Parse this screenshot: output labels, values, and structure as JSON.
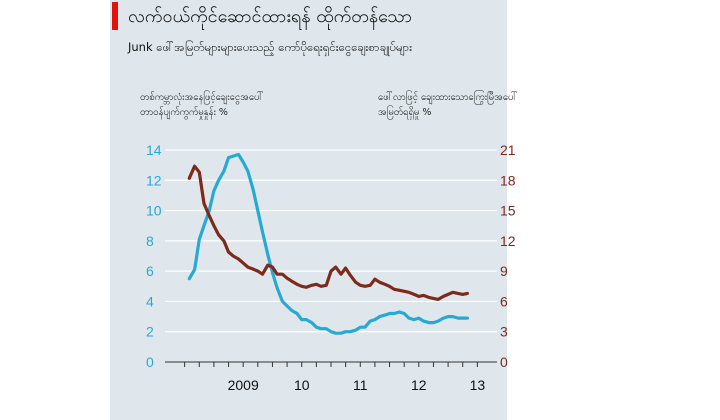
{
  "title": "လက်ဝယ်ကိုင်ဆောင်ထားရန် ထိုက်တန်သော",
  "subtitle": "Junk ဖေါ်အမြတ်များများပေးသည့် ကော်ပိုရေးရှင်းငွေချေးစာချုပ်များ",
  "left_axis_label": [
    "တစ်ကမ္ဘာလုံးအနေဖြင့်ချေးငွေအပေါ်",
    "တာဝန်ပျက်ကွက်မှုနှုန်း %"
  ],
  "right_axis_label": [
    "ဖေါ်လာဖြင့် ချေးထားသောကြွေးမြီအပေါ်",
    "အမြတ်ရရှိမှု %"
  ],
  "colors": {
    "left_series": "#27a9d3",
    "right_series": "#7d2a1b",
    "panel": "#dfe7ec",
    "accent": "#e3120b"
  },
  "chart_data": {
    "type": "line",
    "x_tick_labels": [
      "2009",
      "10",
      "11",
      "12",
      "13"
    ],
    "x_tick_years": [
      2009,
      2010,
      2011,
      2012,
      2013
    ],
    "x_range": [
      2008.25,
      2013.75
    ],
    "y_left": {
      "range": [
        0,
        14
      ],
      "ticks": [
        0,
        2,
        4,
        6,
        8,
        10,
        12,
        14
      ]
    },
    "y_right": {
      "range": [
        0,
        21
      ],
      "ticks": [
        0,
        3,
        6,
        9,
        12,
        15,
        18,
        21
      ]
    },
    "series": [
      {
        "axis": "left",
        "x": [
          2008.58,
          2008.67,
          2008.75,
          2008.83,
          2008.92,
          2009.0,
          2009.08,
          2009.17,
          2009.25,
          2009.33,
          2009.42,
          2009.5,
          2009.58,
          2009.67,
          2009.75,
          2009.83,
          2009.92,
          2010.0,
          2010.08,
          2010.17,
          2010.25,
          2010.33,
          2010.42,
          2010.5,
          2010.58,
          2010.67,
          2010.75,
          2010.83,
          2010.92,
          2011.0,
          2011.08,
          2011.17,
          2011.25,
          2011.33,
          2011.42,
          2011.5,
          2011.58,
          2011.67,
          2011.75,
          2011.83,
          2011.92,
          2012.0,
          2012.08,
          2012.17,
          2012.25,
          2012.33,
          2012.42,
          2012.5,
          2012.58,
          2012.67,
          2012.75,
          2012.83,
          2012.92,
          2013.0,
          2013.08,
          2013.17,
          2013.25,
          2013.33
        ],
        "y": [
          5.5,
          6.1,
          8.1,
          9.0,
          10.0,
          11.3,
          12.0,
          12.6,
          13.5,
          13.6,
          13.7,
          13.2,
          12.6,
          11.4,
          10.0,
          8.6,
          7.1,
          5.9,
          4.9,
          4.0,
          3.7,
          3.4,
          3.2,
          2.8,
          2.8,
          2.6,
          2.3,
          2.2,
          2.2,
          2.0,
          1.9,
          1.9,
          2.0,
          2.0,
          2.1,
          2.3,
          2.3,
          2.7,
          2.8,
          3.0,
          3.1,
          3.2,
          3.2,
          3.3,
          3.2,
          2.9,
          2.8,
          2.9,
          2.7,
          2.6,
          2.6,
          2.7,
          2.9,
          3.0,
          3.0,
          2.9,
          2.9,
          2.9
        ]
      },
      {
        "axis": "right",
        "x": [
          2008.58,
          2008.67,
          2008.75,
          2008.83,
          2008.92,
          2009.0,
          2009.08,
          2009.17,
          2009.25,
          2009.33,
          2009.42,
          2009.5,
          2009.58,
          2009.67,
          2009.75,
          2009.83,
          2009.92,
          2010.0,
          2010.08,
          2010.17,
          2010.25,
          2010.33,
          2010.42,
          2010.5,
          2010.58,
          2010.67,
          2010.75,
          2010.83,
          2010.92,
          2011.0,
          2011.08,
          2011.17,
          2011.25,
          2011.33,
          2011.42,
          2011.5,
          2011.58,
          2011.67,
          2011.75,
          2011.83,
          2011.92,
          2012.0,
          2012.08,
          2012.17,
          2012.25,
          2012.33,
          2012.42,
          2012.5,
          2012.58,
          2012.67,
          2012.75,
          2012.83,
          2012.92,
          2013.0,
          2013.08,
          2013.17,
          2013.25,
          2013.33
        ],
        "y": [
          18.2,
          19.4,
          18.8,
          15.7,
          14.5,
          13.5,
          12.6,
          12.0,
          10.9,
          10.5,
          10.2,
          9.8,
          9.4,
          9.2,
          9.0,
          8.7,
          9.6,
          9.4,
          8.7,
          8.7,
          8.3,
          8.0,
          7.7,
          7.5,
          7.4,
          7.6,
          7.7,
          7.5,
          7.6,
          9.0,
          9.4,
          8.7,
          9.3,
          8.6,
          7.9,
          7.6,
          7.5,
          7.6,
          8.2,
          7.9,
          7.7,
          7.5,
          7.2,
          7.1,
          7.0,
          6.9,
          6.7,
          6.5,
          6.6,
          6.4,
          6.3,
          6.2,
          6.5,
          6.7,
          6.9,
          6.8,
          6.7,
          6.8
        ]
      }
    ]
  }
}
